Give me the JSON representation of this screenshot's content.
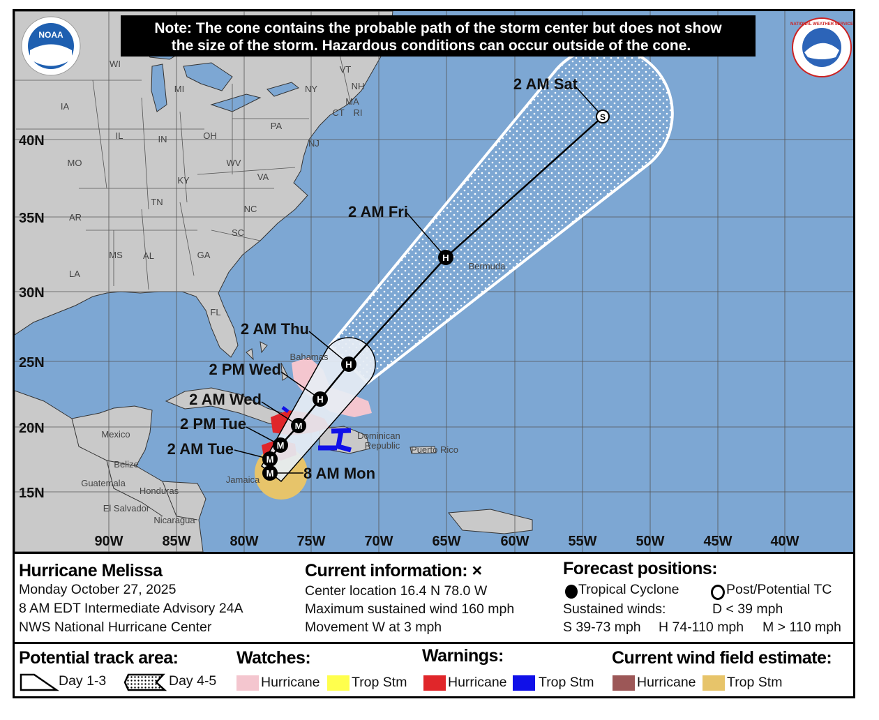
{
  "note": {
    "line1": "Note: The cone contains the probable path of the storm center but does not show",
    "line2": "the size of the storm. Hazardous conditions can occur outside of the cone."
  },
  "logos": {
    "left": "NOAA",
    "right": "NATIONAL WEATHER SERVICE"
  },
  "map": {
    "longitudes": [
      "90W",
      "85W",
      "80W",
      "75W",
      "70W",
      "65W",
      "60W",
      "55W",
      "50W",
      "45W",
      "40W"
    ],
    "latitudes": [
      "40N",
      "35N",
      "30N",
      "25N",
      "20N",
      "15N"
    ],
    "states": [
      "WI",
      "MI",
      "NY",
      "VT",
      "NH",
      "MA",
      "CT",
      "RI",
      "IA",
      "IL",
      "IN",
      "OH",
      "PA",
      "NJ",
      "MO",
      "KY",
      "WV",
      "VA",
      "TN",
      "NC",
      "AR",
      "SC",
      "MS",
      "AL",
      "GA",
      "LA",
      "FL"
    ],
    "countries": [
      "Mexico",
      "Belize",
      "Guatemala",
      "Honduras",
      "El Salvador",
      "Nicaragua",
      "Bahamas",
      "Dominican",
      "Republic",
      "Puerto Rico",
      "Jamaica",
      "Bermuda"
    ],
    "forecast_points": [
      {
        "label": "8 AM Mon",
        "symbol": "M"
      },
      {
        "label": "",
        "symbol": "M"
      },
      {
        "label": "2 AM Tue",
        "symbol": "M"
      },
      {
        "label": "2 PM Tue",
        "symbol": "M"
      },
      {
        "label": "2 AM Wed",
        "symbol": "M"
      },
      {
        "label": "2 PM Wed",
        "symbol": "H"
      },
      {
        "label": "2 AM Thu",
        "symbol": "H"
      },
      {
        "label": "2 AM Fri",
        "symbol": "H"
      },
      {
        "label": "2 AM Sat",
        "symbol": "S"
      }
    ]
  },
  "info": {
    "storm_name": "Hurricane Melissa",
    "date": "Monday October 27, 2025",
    "advisory": "8 AM EDT Intermediate Advisory 24A",
    "center": "NWS National Hurricane Center",
    "current_title": "Current information: ×",
    "location": "Center location 16.4 N 78.0 W",
    "max_wind": "Maximum sustained wind 160 mph",
    "movement": "Movement W at 3 mph",
    "forecast_title": "Forecast positions:",
    "tropical_cyclone": "Tropical Cyclone",
    "post_tc": "Post/Potential TC",
    "sustained": "Sustained winds:",
    "d": "D < 39 mph",
    "s": "S 39-73 mph",
    "hh": "H 74-110 mph",
    "m": "M > 110 mph"
  },
  "legend": {
    "track_title": "Potential track area:",
    "day13": "Day 1-3",
    "day45": "Day 4-5",
    "watches_title": "Watches:",
    "warnings_title": "Warnings:",
    "wind_title": "Current wind field estimate:",
    "hurricane": "Hurricane",
    "trop_stm": "Trop Stm"
  },
  "colors": {
    "ocean": "#7da7d3",
    "land": "#c9c9c9",
    "hurricane_watch": "#f4c6cf",
    "tropstm_watch": "#ffff4d",
    "hurricane_warning": "#e0262a",
    "tropstm_warning": "#1010e8",
    "hurricane_wind": "#9c5757",
    "tropstm_wind": "#e7c46a"
  }
}
